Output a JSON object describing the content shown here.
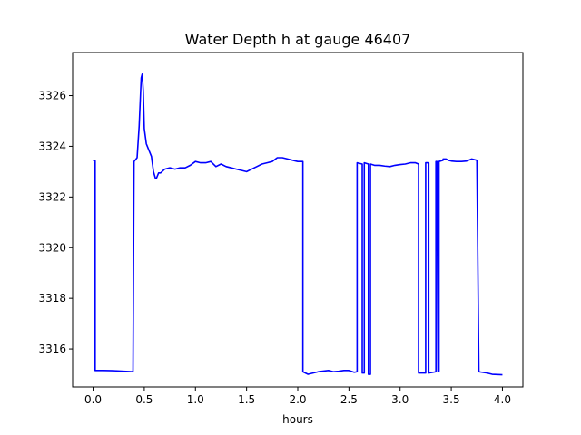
{
  "chart_data": {
    "type": "line",
    "title": "Water Depth h at gauge 46407",
    "xlabel": "hours",
    "ylabel": "",
    "xlim": [
      -0.2,
      4.2
    ],
    "ylim": [
      3314.5,
      3327.7
    ],
    "xticks": [
      0.0,
      0.5,
      1.0,
      1.5,
      2.0,
      2.5,
      3.0,
      3.5,
      4.0
    ],
    "xtick_labels": [
      "0.0",
      "0.5",
      "1.0",
      "1.5",
      "2.0",
      "2.5",
      "3.0",
      "3.5",
      "4.0"
    ],
    "yticks": [
      3316,
      3318,
      3320,
      3322,
      3324,
      3326
    ],
    "ytick_labels": [
      "3316",
      "3318",
      "3320",
      "3322",
      "3324",
      "3326"
    ],
    "grid": false,
    "series": [
      {
        "color": "#0000ff",
        "x": [
          0.0,
          0.02,
          0.02,
          0.1,
          0.2,
          0.3,
          0.39,
          0.4,
          0.43,
          0.45,
          0.47,
          0.48,
          0.49,
          0.5,
          0.52,
          0.55,
          0.57,
          0.59,
          0.61,
          0.62,
          0.64,
          0.66,
          0.7,
          0.75,
          0.8,
          0.85,
          0.9,
          0.95,
          1.0,
          1.05,
          1.1,
          1.15,
          1.2,
          1.25,
          1.3,
          1.35,
          1.4,
          1.45,
          1.5,
          1.55,
          1.6,
          1.65,
          1.7,
          1.75,
          1.8,
          1.85,
          1.9,
          1.95,
          2.0,
          2.05,
          2.05,
          2.1,
          2.15,
          2.2,
          2.3,
          2.35,
          2.4,
          2.45,
          2.5,
          2.55,
          2.58,
          2.58,
          2.63,
          2.63,
          2.65,
          2.65,
          2.69,
          2.69,
          2.71,
          2.71,
          2.75,
          2.8,
          2.85,
          2.9,
          2.95,
          3.0,
          3.05,
          3.1,
          3.15,
          3.18,
          3.18,
          3.25,
          3.25,
          3.28,
          3.28,
          3.35,
          3.35,
          3.36,
          3.37,
          3.38,
          3.38,
          3.42,
          3.42,
          3.45,
          3.47,
          3.5,
          3.55,
          3.6,
          3.65,
          3.7,
          3.75,
          3.77,
          3.77,
          3.85,
          3.9,
          4.0
        ],
        "y": [
          3323.45,
          3323.42,
          3315.15,
          3315.15,
          3315.14,
          3315.12,
          3315.1,
          3323.4,
          3323.55,
          3324.8,
          3326.7,
          3326.85,
          3326.2,
          3324.7,
          3324.1,
          3323.8,
          3323.6,
          3323.0,
          3322.72,
          3322.75,
          3322.95,
          3322.95,
          3323.1,
          3323.15,
          3323.1,
          3323.15,
          3323.15,
          3323.25,
          3323.4,
          3323.35,
          3323.35,
          3323.4,
          3323.2,
          3323.3,
          3323.2,
          3323.15,
          3323.1,
          3323.05,
          3323.0,
          3323.1,
          3323.2,
          3323.3,
          3323.35,
          3323.4,
          3323.55,
          3323.55,
          3323.5,
          3323.45,
          3323.4,
          3323.4,
          3315.1,
          3315.0,
          3315.05,
          3315.1,
          3315.15,
          3315.1,
          3315.12,
          3315.15,
          3315.15,
          3315.08,
          3315.1,
          3323.35,
          3323.3,
          3315.05,
          3315.05,
          3323.35,
          3323.3,
          3315.0,
          3315.0,
          3323.3,
          3323.25,
          3323.25,
          3323.22,
          3323.2,
          3323.25,
          3323.28,
          3323.3,
          3323.35,
          3323.35,
          3323.3,
          3315.05,
          3315.05,
          3323.35,
          3323.35,
          3315.05,
          3315.1,
          3323.4,
          3323.4,
          3315.1,
          3315.12,
          3323.4,
          3323.45,
          3323.5,
          3323.5,
          3323.45,
          3323.42,
          3323.4,
          3323.4,
          3323.42,
          3323.5,
          3323.45,
          3315.1,
          3315.1,
          3315.05,
          3315.0,
          3314.98
        ]
      }
    ]
  }
}
